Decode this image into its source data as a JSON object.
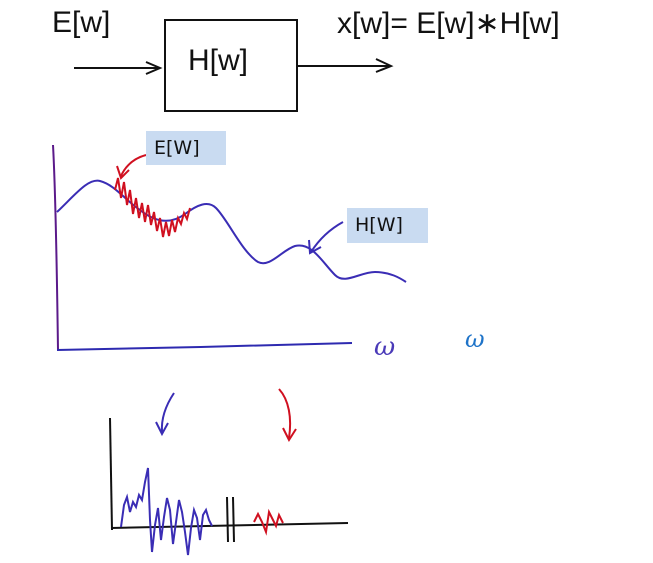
{
  "diagram": {
    "input_label": "E[w]",
    "block_label": "H[w]",
    "output_label": "x[w]= E[w]∗H[w]",
    "tag_e": "E[W]",
    "tag_h": "H[W]",
    "omega_handwritten": "ω",
    "omega_plain": "ω"
  },
  "colors": {
    "ink": "#111111",
    "blue_curve": "#3a2db5",
    "red_curve": "#d01020",
    "tag_bg": "#c9dbf1",
    "omega_plain": "#1e73c8"
  }
}
